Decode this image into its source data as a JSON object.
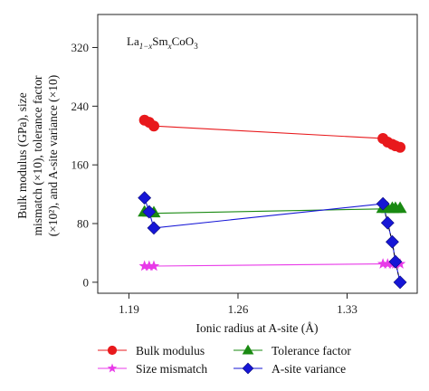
{
  "chart_data": {
    "type": "line",
    "annotation_main": "La",
    "annotation_sub": "1−x",
    "annotation_mid": "Sm",
    "annotation_sub2": "x",
    "annotation_end": "CoO",
    "annotation_sub3": "3",
    "xlabel": "Ionic radius at A-site (Å)",
    "ylabel_lines": [
      "Bulk modulus (GPa), size",
      "mismatch (×10), tolerance factor",
      "(×10²), and A-site variance (×10)"
    ],
    "xlim": [
      1.17,
      1.375
    ],
    "ylim": [
      -15,
      365
    ],
    "xticks": [
      1.19,
      1.26,
      1.33
    ],
    "xtick_labels": [
      "1.19",
      "1.26",
      "1.33"
    ],
    "yticks": [
      0,
      80,
      160,
      240,
      320
    ],
    "ytick_labels": [
      "0",
      "80",
      "160",
      "240",
      "320"
    ],
    "grid": false,
    "legend_position": "bottom",
    "series": [
      {
        "name": "Bulk modulus",
        "color": "#e8191c",
        "marker": "circle",
        "points": [
          [
            1.2,
            221
          ],
          [
            1.203,
            218
          ],
          [
            1.206,
            213
          ],
          [
            1.353,
            196
          ],
          [
            1.356,
            191
          ],
          [
            1.359,
            188
          ],
          [
            1.361,
            186
          ],
          [
            1.364,
            184
          ]
        ],
        "line_points": [
          [
            1.206,
            213
          ],
          [
            1.353,
            196
          ]
        ]
      },
      {
        "name": "Tolerance factor",
        "color": "#1a8a12",
        "marker": "triangle",
        "points": [
          [
            1.2,
            96
          ],
          [
            1.203,
            96
          ],
          [
            1.206,
            95
          ],
          [
            1.353,
            101
          ],
          [
            1.356,
            101
          ],
          [
            1.359,
            101
          ],
          [
            1.361,
            101
          ],
          [
            1.364,
            101
          ]
        ],
        "line_points": [
          [
            1.206,
            94
          ],
          [
            1.353,
            100
          ]
        ]
      },
      {
        "name": "Size mismatch",
        "color": "#e83ae8",
        "marker": "star",
        "points": [
          [
            1.2,
            22
          ],
          [
            1.203,
            22
          ],
          [
            1.206,
            22
          ],
          [
            1.353,
            25
          ],
          [
            1.356,
            25
          ],
          [
            1.359,
            25
          ],
          [
            1.361,
            25
          ],
          [
            1.364,
            25
          ]
        ],
        "line_points": [
          [
            1.206,
            22
          ],
          [
            1.353,
            25
          ]
        ]
      },
      {
        "name": "A-site variance",
        "color": "#1616d6",
        "marker": "diamond",
        "points": [
          [
            1.2,
            115
          ],
          [
            1.203,
            96
          ],
          [
            1.206,
            74
          ],
          [
            1.353,
            107
          ],
          [
            1.356,
            81
          ],
          [
            1.359,
            55
          ],
          [
            1.361,
            28
          ],
          [
            1.364,
            0
          ]
        ],
        "line_points": [
          [
            1.2,
            115
          ],
          [
            1.203,
            96
          ],
          [
            1.206,
            74
          ],
          [
            1.353,
            107
          ],
          [
            1.356,
            81
          ],
          [
            1.359,
            55
          ],
          [
            1.361,
            28
          ],
          [
            1.364,
            0
          ]
        ]
      }
    ],
    "legend": [
      {
        "name": "Bulk modulus",
        "series_index": 0
      },
      {
        "name": "Tolerance factor",
        "series_index": 1
      },
      {
        "name": "Size mismatch",
        "series_index": 2
      },
      {
        "name": "A-site variance",
        "series_index": 3
      }
    ]
  }
}
